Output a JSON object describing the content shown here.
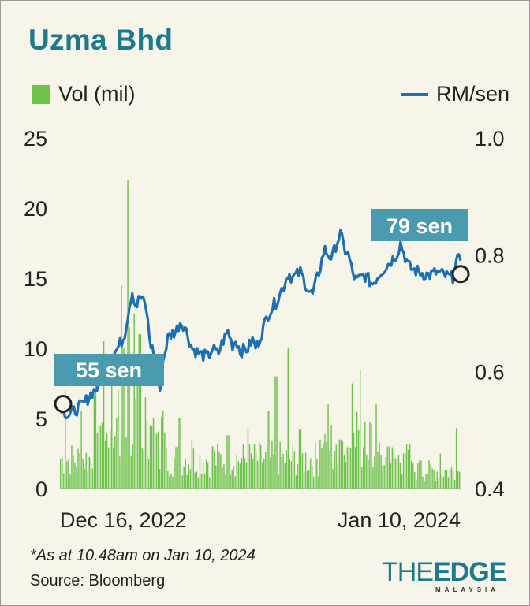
{
  "title": "Uzma Bhd",
  "legend": {
    "volume": "Vol (mil)",
    "price": "RM/sen"
  },
  "colors": {
    "accent": "#1d7a8c",
    "volume": "#6dc24b",
    "price": "#1c6fb0",
    "label_box": "#4a9bb0",
    "background": "#f7f5ea"
  },
  "annotations": {
    "start": "55 sen",
    "end": "79 sen"
  },
  "footnote": "*As at 10.48am on Jan 10, 2024",
  "source": "Source: Bloomberg",
  "logo": {
    "word_the": "THE",
    "word_edge": "EDGE",
    "sub": "MALAYSIA"
  },
  "chart_data": {
    "type": "line",
    "title": "Uzma Bhd",
    "x_tick_labels": [
      "Dec 16, 2022",
      "Jan 10, 2024"
    ],
    "left_axis": {
      "label": "Vol (mil)",
      "ylim": [
        0,
        25
      ],
      "ticks": [
        0,
        5,
        10,
        15,
        20,
        25
      ]
    },
    "right_axis": {
      "label": "RM/sen",
      "ylim": [
        0.4,
        1.0
      ],
      "ticks": [
        "0.4",
        "0.6",
        "0.8",
        "1.0"
      ],
      "tick_values": [
        0.4,
        0.6,
        0.8,
        1.0
      ]
    },
    "price_keypoints": [
      [
        0,
        0.545
      ],
      [
        0.02,
        0.525
      ],
      [
        0.04,
        0.535
      ],
      [
        0.06,
        0.545
      ],
      [
        0.08,
        0.565
      ],
      [
        0.1,
        0.575
      ],
      [
        0.12,
        0.63
      ],
      [
        0.14,
        0.635
      ],
      [
        0.16,
        0.66
      ],
      [
        0.17,
        0.7
      ],
      [
        0.18,
        0.74
      ],
      [
        0.19,
        0.71
      ],
      [
        0.2,
        0.73
      ],
      [
        0.215,
        0.71
      ],
      [
        0.225,
        0.65
      ],
      [
        0.24,
        0.62
      ],
      [
        0.25,
        0.56
      ],
      [
        0.255,
        0.61
      ],
      [
        0.27,
        0.66
      ],
      [
        0.29,
        0.67
      ],
      [
        0.3,
        0.685
      ],
      [
        0.31,
        0.68
      ],
      [
        0.32,
        0.66
      ],
      [
        0.33,
        0.64
      ],
      [
        0.35,
        0.63
      ],
      [
        0.37,
        0.625
      ],
      [
        0.38,
        0.64
      ],
      [
        0.395,
        0.63
      ],
      [
        0.405,
        0.65
      ],
      [
        0.42,
        0.67
      ],
      [
        0.43,
        0.645
      ],
      [
        0.44,
        0.655
      ],
      [
        0.45,
        0.635
      ],
      [
        0.47,
        0.64
      ],
      [
        0.48,
        0.655
      ],
      [
        0.49,
        0.64
      ],
      [
        0.5,
        0.66
      ],
      [
        0.52,
        0.7
      ],
      [
        0.54,
        0.72
      ],
      [
        0.56,
        0.75
      ],
      [
        0.57,
        0.77
      ],
      [
        0.58,
        0.76
      ],
      [
        0.6,
        0.77
      ],
      [
        0.62,
        0.74
      ],
      [
        0.63,
        0.73
      ],
      [
        0.65,
        0.78
      ],
      [
        0.66,
        0.81
      ],
      [
        0.67,
        0.8
      ],
      [
        0.68,
        0.795
      ],
      [
        0.69,
        0.82
      ],
      [
        0.7,
        0.835
      ],
      [
        0.71,
        0.81
      ],
      [
        0.72,
        0.8
      ],
      [
        0.73,
        0.77
      ],
      [
        0.74,
        0.755
      ],
      [
        0.76,
        0.765
      ],
      [
        0.78,
        0.75
      ],
      [
        0.8,
        0.77
      ],
      [
        0.82,
        0.785
      ],
      [
        0.84,
        0.8
      ],
      [
        0.85,
        0.82
      ],
      [
        0.86,
        0.8
      ],
      [
        0.87,
        0.78
      ],
      [
        0.88,
        0.775
      ],
      [
        0.9,
        0.77
      ],
      [
        0.92,
        0.765
      ],
      [
        0.94,
        0.77
      ],
      [
        0.96,
        0.765
      ],
      [
        0.98,
        0.76
      ],
      [
        0.99,
        0.79
      ],
      [
        1.0,
        0.79
      ]
    ],
    "volume_spikes": [
      [
        0.015,
        7.0
      ],
      [
        0.055,
        5.5
      ],
      [
        0.09,
        9.0
      ],
      [
        0.1,
        4.5
      ],
      [
        0.11,
        10.5
      ],
      [
        0.13,
        8.0
      ],
      [
        0.145,
        7.0
      ],
      [
        0.155,
        14.5
      ],
      [
        0.16,
        10.0
      ],
      [
        0.17,
        22.0
      ],
      [
        0.175,
        11.5
      ],
      [
        0.185,
        12.5
      ],
      [
        0.195,
        8.0
      ],
      [
        0.2,
        11.0
      ],
      [
        0.215,
        6.5
      ],
      [
        0.225,
        4.5
      ],
      [
        0.26,
        4.0
      ],
      [
        0.3,
        5.0
      ],
      [
        0.33,
        3.5
      ],
      [
        0.38,
        3.0
      ],
      [
        0.42,
        3.8
      ],
      [
        0.47,
        4.2
      ],
      [
        0.52,
        5.5
      ],
      [
        0.54,
        8.0
      ],
      [
        0.57,
        10.0
      ],
      [
        0.6,
        4.2
      ],
      [
        0.65,
        3.5
      ],
      [
        0.67,
        6.0
      ],
      [
        0.7,
        3.5
      ],
      [
        0.73,
        7.5
      ],
      [
        0.75,
        8.5
      ],
      [
        0.79,
        6.0
      ],
      [
        0.82,
        3.0
      ],
      [
        0.86,
        2.5
      ],
      [
        0.9,
        2.0
      ],
      [
        0.95,
        2.5
      ],
      [
        0.99,
        4.3
      ]
    ]
  }
}
